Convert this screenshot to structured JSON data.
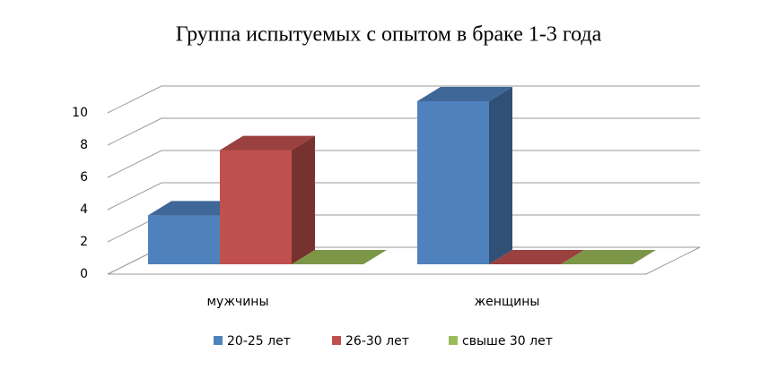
{
  "chart_data": {
    "type": "bar3d",
    "title": "Группа испытуемых с опытом в браке 1-3 года",
    "categories": [
      "мужчины",
      "женщины"
    ],
    "series": [
      {
        "name": "20-25 лет",
        "color": "#4f81bd",
        "values": [
          3,
          10
        ]
      },
      {
        "name": "26-30 лет",
        "color": "#c0504d",
        "values": [
          7,
          0
        ]
      },
      {
        "name": "свыше 30 лет",
        "color": "#9bbb59",
        "values": [
          0,
          0
        ]
      }
    ],
    "ylim": [
      0,
      10
    ],
    "yticks": [
      0,
      2,
      4,
      6,
      8,
      10
    ],
    "grid": true,
    "legend": "bottom"
  }
}
